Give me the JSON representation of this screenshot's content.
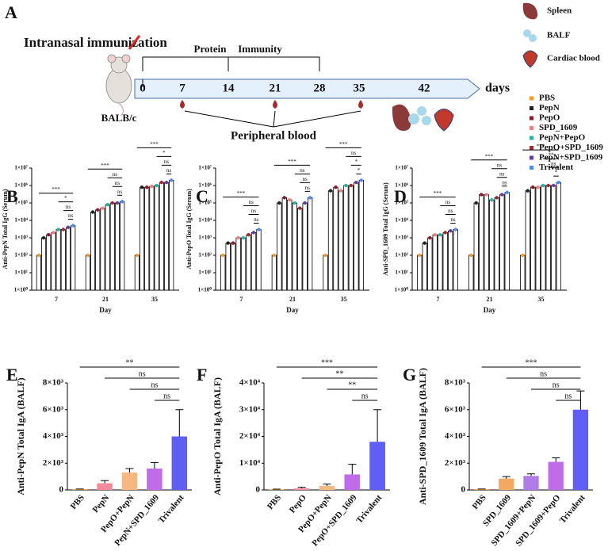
{
  "panel_a": {
    "label": "A",
    "title": "Intranasal immunization",
    "mouse": "BALB/c",
    "bracket": [
      "Protein",
      "Immunity"
    ],
    "timeline": [
      0,
      7,
      14,
      21,
      28,
      35,
      42
    ],
    "unit": "days",
    "blood": "Peripheral blood",
    "samples": [
      "Spleen",
      "BALF",
      "Cardiac blood"
    ]
  },
  "legend": {
    "items": [
      {
        "name": "PBS",
        "color": "#f39a2a"
      },
      {
        "name": "PepN",
        "color": "#222222"
      },
      {
        "name": "PepO",
        "color": "#8b1a2b"
      },
      {
        "name": "SPD_1609",
        "color": "#f08080"
      },
      {
        "name": "PepN+PepO",
        "color": "#2ab0a8"
      },
      {
        "name": "PepO+SPD_1609",
        "color": "#9b2a2a"
      },
      {
        "name": "PepN+SPD_1609",
        "color": "#6a3aa0"
      },
      {
        "name": "Trivalent",
        "color": "#4a8ef0"
      }
    ]
  },
  "chart_data": [
    {
      "type": "bar",
      "panel": "B",
      "log_scale": true,
      "ylabel": "Anti-PepN Total IgG (Serum)",
      "xlabel": "Day",
      "categories": [
        "7",
        "21",
        "35"
      ],
      "ylim": [
        1,
        10000000
      ],
      "yticks": [
        {
          "value": 1,
          "label": "1×10⁰"
        },
        {
          "value": 10,
          "label": "1×10¹"
        },
        {
          "value": 100,
          "label": "1×10²"
        },
        {
          "value": 1000,
          "label": "1×10³"
        },
        {
          "value": 10000,
          "label": "1×10⁴"
        },
        {
          "value": 100000,
          "label": "1×10⁵"
        },
        {
          "value": 1000000,
          "label": "1×10⁶"
        },
        {
          "value": 10000000,
          "label": "1×10⁷"
        }
      ],
      "series": [
        {
          "values": [
            100,
            100,
            100
          ]
        },
        {
          "values": [
            1000,
            30000,
            800000
          ]
        },
        {
          "values": [
            1500,
            40000,
            800000
          ]
        },
        {
          "values": [
            2000,
            50000,
            900000
          ]
        },
        {
          "values": [
            3000,
            80000,
            1000000
          ]
        },
        {
          "values": [
            3000,
            100000,
            1500000
          ]
        },
        {
          "values": [
            4000,
            100000,
            1500000
          ]
        },
        {
          "values": [
            5000,
            120000,
            2000000
          ]
        }
      ],
      "annotations": [
        [
          "***",
          "*",
          "ns",
          "ns"
        ],
        [
          "***",
          "ns",
          "ns",
          "ns"
        ],
        [
          "***",
          "*",
          "ns",
          "ns"
        ]
      ]
    },
    {
      "type": "bar",
      "panel": "C",
      "log_scale": true,
      "ylabel": "Anti-PepO Total IgG (Serum)",
      "xlabel": "Day",
      "categories": [
        "7",
        "21",
        "35"
      ],
      "ylim": [
        1,
        10000000
      ],
      "yticks": [
        {
          "value": 1,
          "label": "1×10⁰"
        },
        {
          "value": 10,
          "label": "1×10¹"
        },
        {
          "value": 100,
          "label": "1×10²"
        },
        {
          "value": 1000,
          "label": "1×10³"
        },
        {
          "value": 10000,
          "label": "1×10⁴"
        },
        {
          "value": 100000,
          "label": "1×10⁵"
        },
        {
          "value": 1000000,
          "label": "1×10⁶"
        },
        {
          "value": 10000000,
          "label": "1×10⁷"
        }
      ],
      "series": [
        {
          "values": [
            100,
            100,
            100
          ]
        },
        {
          "values": [
            500,
            100000,
            500000
          ]
        },
        {
          "values": [
            500,
            200000,
            800000
          ]
        },
        {
          "values": [
            1000,
            150000,
            500000
          ]
        },
        {
          "values": [
            1000,
            100000,
            1000000
          ]
        },
        {
          "values": [
            1500,
            50000,
            1000000
          ]
        },
        {
          "values": [
            2000,
            100000,
            1500000
          ]
        },
        {
          "values": [
            3000,
            200000,
            2000000
          ]
        }
      ],
      "annotations": [
        [
          "***",
          "ns",
          "ns",
          "ns"
        ],
        [
          "***",
          "ns",
          "ns",
          "ns"
        ],
        [
          "***",
          "ns",
          "*",
          "*"
        ]
      ]
    },
    {
      "type": "bar",
      "panel": "D",
      "log_scale": true,
      "ylabel": "Anti-SPD_1609 Total IgG (Serum)",
      "xlabel": "Day",
      "categories": [
        "7",
        "21",
        "35"
      ],
      "ylim": [
        1,
        10000000
      ],
      "yticks": [
        {
          "value": 1,
          "label": "1×10⁰"
        },
        {
          "value": 10,
          "label": "1×10¹"
        },
        {
          "value": 100,
          "label": "1×10²"
        },
        {
          "value": 1000,
          "label": "1×10³"
        },
        {
          "value": 10000,
          "label": "1×10⁴"
        },
        {
          "value": 100000,
          "label": "1×10⁵"
        },
        {
          "value": 1000000,
          "label": "1×10⁶"
        },
        {
          "value": 10000000,
          "label": "1×10⁷"
        }
      ],
      "series": [
        {
          "values": [
            100,
            100,
            100
          ]
        },
        {
          "values": [
            500,
            100000,
            500000
          ]
        },
        {
          "values": [
            1000,
            300000,
            800000
          ]
        },
        {
          "values": [
            1500,
            300000,
            800000
          ]
        },
        {
          "values": [
            1500,
            150000,
            1000000
          ]
        },
        {
          "values": [
            2000,
            200000,
            1000000
          ]
        },
        {
          "values": [
            2500,
            300000,
            1000000
          ]
        },
        {
          "values": [
            3000,
            400000,
            1500000
          ]
        }
      ],
      "annotations": [
        [
          "***",
          "ns",
          "ns",
          "ns"
        ],
        [
          "***",
          "ns",
          "ns",
          "ns"
        ],
        [
          "***",
          "**",
          "ns",
          "*"
        ]
      ]
    },
    {
      "type": "bar",
      "panel": "E",
      "ylabel": "Anti-PepN Total IgA (BALF)",
      "categories": [
        "PBS",
        "PepN",
        "PepO+PepN",
        "PepN+SPD_1609",
        "Trivalent"
      ],
      "values": [
        50,
        500,
        1300,
        1600,
        4000
      ],
      "errors": [
        20,
        200,
        300,
        450,
        2000
      ],
      "colors": [
        "#f39a2a",
        "#f58a9a",
        "#f5b880",
        "#c06ce8",
        "#5f5ff5"
      ],
      "ylim": [
        0,
        8000
      ],
      "yticks": [
        0,
        {
          "value": 2000,
          "label": "2×10³"
        },
        {
          "value": 4000,
          "label": "4×10³"
        },
        {
          "value": 6000,
          "label": "6×10³"
        },
        {
          "value": 8000,
          "label": "8×10³"
        }
      ],
      "annotations": [
        "**",
        "ns",
        "ns",
        "ns"
      ]
    },
    {
      "type": "bar",
      "panel": "F",
      "ylabel": "Anti-PepO Total IgA (BALF)",
      "categories": [
        "PBS",
        "PepO",
        "PepO+PepN",
        "PepO+SPD_1609",
        "Trivalent"
      ],
      "values": [
        200,
        600,
        1500,
        5800,
        18000
      ],
      "errors": [
        100,
        400,
        700,
        3800,
        12000
      ],
      "colors": [
        "#f39a2a",
        "#f58a9a",
        "#f5b880",
        "#c06ce8",
        "#5f5ff5"
      ],
      "ylim": [
        0,
        40000
      ],
      "yticks": [
        0,
        {
          "value": 10000,
          "label": "1×10⁴"
        },
        {
          "value": 20000,
          "label": "2×10⁴"
        },
        {
          "value": 30000,
          "label": "3×10⁴"
        },
        {
          "value": 40000,
          "label": "4×10⁴"
        }
      ],
      "annotations": [
        "***",
        "**",
        "**",
        "ns"
      ]
    },
    {
      "type": "bar",
      "panel": "G",
      "ylabel": "Anti-SPD_1609 Total IgA (BALF)",
      "categories": [
        "PBS",
        "SPD_1609",
        "SPD_1609+PepN",
        "SPD_1609+PepO",
        "Trivalent"
      ],
      "values": [
        50,
        850,
        1050,
        2100,
        6000
      ],
      "errors": [
        20,
        150,
        150,
        300,
        1400
      ],
      "colors": [
        "#f39a2a",
        "#f5a860",
        "#b07ce8",
        "#c06ce8",
        "#5f5ff5"
      ],
      "ylim": [
        0,
        8000
      ],
      "yticks": [
        0,
        {
          "value": 2000,
          "label": "2×10³"
        },
        {
          "value": 4000,
          "label": "4×10³"
        },
        {
          "value": 6000,
          "label": "6×10³"
        },
        {
          "value": 8000,
          "label": "8×10³"
        }
      ],
      "annotations": [
        "***",
        "ns",
        "ns",
        "ns"
      ]
    }
  ]
}
